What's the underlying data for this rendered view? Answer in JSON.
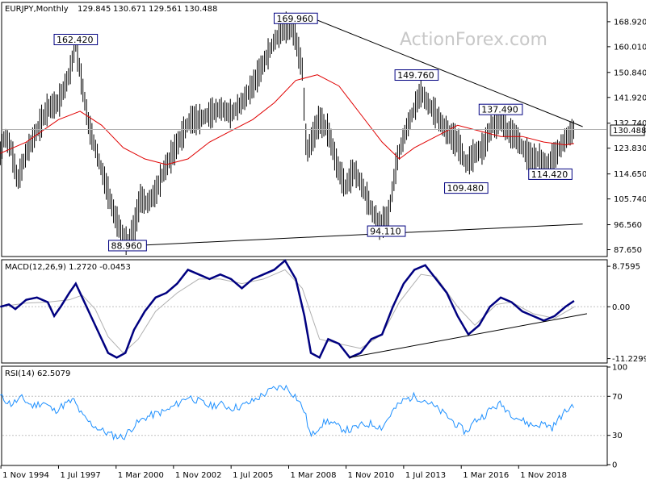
{
  "chart_data": [
    {
      "type": "candlestick",
      "title": "EURJPY,Monthly",
      "ohlc": {
        "open": "129.845",
        "high": "130.671",
        "low": "129.561",
        "close": "130.488"
      },
      "current_price": "130.488",
      "y_ticks": [
        "168.920",
        "160.010",
        "150.840",
        "141.920",
        "132.740",
        "123.830",
        "114.650",
        "105.740",
        "96.560",
        "87.650"
      ],
      "ylim": [
        85.5,
        175.5
      ],
      "annotations": [
        {
          "text": "169.960",
          "date": 2008.5,
          "value": 169.96
        },
        {
          "text": "162.420",
          "date": 1998.3,
          "value": 162.42
        },
        {
          "text": "149.760",
          "date": 2014.1,
          "value": 149.76
        },
        {
          "text": "137.490",
          "date": 2018.0,
          "value": 137.49
        },
        {
          "text": "114.420",
          "date": 2020.3,
          "value": 114.42
        },
        {
          "text": "109.480",
          "date": 2016.4,
          "value": 109.48
        },
        {
          "text": "94.110",
          "date": 2012.7,
          "value": 94.11
        },
        {
          "text": "88.960",
          "date": 2000.7,
          "value": 88.96
        }
      ],
      "price_series": [
        [
          1994.8,
          122
        ],
        [
          1995.0,
          128
        ],
        [
          1995.3,
          124
        ],
        [
          1995.6,
          112
        ],
        [
          1996.0,
          122
        ],
        [
          1996.5,
          130
        ],
        [
          1997.0,
          138
        ],
        [
          1997.5,
          140
        ],
        [
          1998.0,
          150
        ],
        [
          1998.3,
          161
        ],
        [
          1998.6,
          146
        ],
        [
          1998.9,
          132
        ],
        [
          1999.2,
          124
        ],
        [
          1999.5,
          116
        ],
        [
          1999.8,
          108
        ],
        [
          2000.1,
          100
        ],
        [
          2000.4,
          94
        ],
        [
          2000.7,
          90
        ],
        [
          2001.0,
          95
        ],
        [
          2001.3,
          106
        ],
        [
          2001.6,
          104
        ],
        [
          2002.0,
          108
        ],
        [
          2002.4,
          116
        ],
        [
          2002.8,
          122
        ],
        [
          2003.2,
          128
        ],
        [
          2003.6,
          134
        ],
        [
          2004.0,
          134
        ],
        [
          2004.5,
          136
        ],
        [
          2005.0,
          138
        ],
        [
          2005.5,
          136
        ],
        [
          2006.0,
          140
        ],
        [
          2006.5,
          146
        ],
        [
          2007.0,
          154
        ],
        [
          2007.5,
          162
        ],
        [
          2008.0,
          167
        ],
        [
          2008.4,
          166
        ],
        [
          2008.8,
          152
        ],
        [
          2009.0,
          122
        ],
        [
          2009.3,
          128
        ],
        [
          2009.6,
          134
        ],
        [
          2010.0,
          130
        ],
        [
          2010.4,
          118
        ],
        [
          2010.8,
          110
        ],
        [
          2011.2,
          116
        ],
        [
          2011.6,
          110
        ],
        [
          2012.0,
          102
        ],
        [
          2012.4,
          96
        ],
        [
          2012.8,
          100
        ],
        [
          2013.2,
          120
        ],
        [
          2013.6,
          130
        ],
        [
          2014.0,
          138
        ],
        [
          2014.3,
          144
        ],
        [
          2014.6,
          140
        ],
        [
          2015.0,
          136
        ],
        [
          2015.3,
          132
        ],
        [
          2015.7,
          128
        ],
        [
          2016.0,
          126
        ],
        [
          2016.4,
          118
        ],
        [
          2016.8,
          122
        ],
        [
          2017.2,
          124
        ],
        [
          2017.6,
          132
        ],
        [
          2018.0,
          134
        ],
        [
          2018.3,
          130
        ],
        [
          2018.7,
          128
        ],
        [
          2019.0,
          124
        ],
        [
          2019.4,
          120
        ],
        [
          2019.8,
          120
        ],
        [
          2020.2,
          118
        ],
        [
          2020.6,
          122
        ],
        [
          2020.9,
          126
        ],
        [
          2021.2,
          129
        ],
        [
          2021.4,
          130.5
        ]
      ],
      "ma_series": [
        [
          1994.8,
          122
        ],
        [
          1996.0,
          126
        ],
        [
          1997.5,
          134
        ],
        [
          1998.5,
          137
        ],
        [
          1999.5,
          132
        ],
        [
          2000.5,
          124
        ],
        [
          2001.5,
          120
        ],
        [
          2002.5,
          118
        ],
        [
          2003.5,
          120
        ],
        [
          2004.5,
          126
        ],
        [
          2005.5,
          130
        ],
        [
          2006.5,
          134
        ],
        [
          2007.5,
          140
        ],
        [
          2008.5,
          148
        ],
        [
          2009.5,
          150
        ],
        [
          2010.5,
          146
        ],
        [
          2011.5,
          136
        ],
        [
          2012.5,
          126
        ],
        [
          2013.3,
          120
        ],
        [
          2014.0,
          124
        ],
        [
          2015.0,
          128
        ],
        [
          2016.0,
          132
        ],
        [
          2017.0,
          130
        ],
        [
          2018.0,
          128
        ],
        [
          2019.0,
          128
        ],
        [
          2020.0,
          126
        ],
        [
          2021.0,
          125
        ],
        [
          2021.4,
          125.5
        ]
      ],
      "lines": [
        {
          "name": "falling-trendline",
          "from": [
            2009.0,
            171.0
          ],
          "to": [
            2021.8,
            131.5
          ]
        },
        {
          "name": "rising-trendline",
          "from": [
            2000.7,
            89.0
          ],
          "to": [
            2021.8,
            96.8
          ]
        }
      ]
    },
    {
      "type": "line",
      "title": "MACD(12,26,9) 1.2720 -0.0453",
      "y_ticks": [
        "8.7595",
        "0.00",
        "-11.2299"
      ],
      "ylim": [
        -12,
        10
      ],
      "macd_series": [
        [
          1994.8,
          0
        ],
        [
          1995.2,
          0.5
        ],
        [
          1995.5,
          -0.5
        ],
        [
          1996.0,
          1.5
        ],
        [
          1996.5,
          2.0
        ],
        [
          1997.0,
          1.0
        ],
        [
          1997.3,
          -2.0
        ],
        [
          1997.6,
          0.0
        ],
        [
          1998.0,
          3.0
        ],
        [
          1998.3,
          5.0
        ],
        [
          1998.6,
          2.0
        ],
        [
          1999.0,
          -2.0
        ],
        [
          1999.4,
          -6.0
        ],
        [
          1999.8,
          -10.0
        ],
        [
          2000.2,
          -11.0
        ],
        [
          2000.6,
          -10.0
        ],
        [
          2001.0,
          -5.0
        ],
        [
          2001.5,
          -1.0
        ],
        [
          2002.0,
          2.0
        ],
        [
          2002.5,
          3.0
        ],
        [
          2003.0,
          5.0
        ],
        [
          2003.5,
          8.0
        ],
        [
          2004.0,
          7.0
        ],
        [
          2004.5,
          6.0
        ],
        [
          2005.0,
          7.0
        ],
        [
          2005.5,
          6.0
        ],
        [
          2006.0,
          4.0
        ],
        [
          2006.5,
          6.0
        ],
        [
          2007.0,
          7.0
        ],
        [
          2007.5,
          8.0
        ],
        [
          2008.0,
          10.0
        ],
        [
          2008.5,
          6.0
        ],
        [
          2008.9,
          -2.0
        ],
        [
          2009.2,
          -10.0
        ],
        [
          2009.6,
          -11.0
        ],
        [
          2010.0,
          -7.0
        ],
        [
          2010.5,
          -8.0
        ],
        [
          2011.0,
          -11.0
        ],
        [
          2011.5,
          -10.0
        ],
        [
          2012.0,
          -7.0
        ],
        [
          2012.5,
          -6.0
        ],
        [
          2013.0,
          0.0
        ],
        [
          2013.5,
          5.0
        ],
        [
          2014.0,
          8.0
        ],
        [
          2014.5,
          9.0
        ],
        [
          2015.0,
          6.0
        ],
        [
          2015.5,
          3.0
        ],
        [
          2016.0,
          -2.0
        ],
        [
          2016.5,
          -6.0
        ],
        [
          2017.0,
          -4.0
        ],
        [
          2017.5,
          0.0
        ],
        [
          2018.0,
          2.0
        ],
        [
          2018.5,
          1.0
        ],
        [
          2019.0,
          -1.0
        ],
        [
          2019.5,
          -2.0
        ],
        [
          2020.0,
          -3.0
        ],
        [
          2020.5,
          -2.0
        ],
        [
          2021.0,
          0.0
        ],
        [
          2021.4,
          1.27
        ]
      ],
      "signal_series": [
        [
          1994.8,
          0
        ],
        [
          1996.0,
          0.8
        ],
        [
          1997.0,
          1.0
        ],
        [
          1998.0,
          1.5
        ],
        [
          1998.6,
          2.5
        ],
        [
          1999.2,
          -0.5
        ],
        [
          1999.8,
          -6.5
        ],
        [
          2000.5,
          -10.0
        ],
        [
          2001.2,
          -7.0
        ],
        [
          2002.0,
          -1.0
        ],
        [
          2003.0,
          3.0
        ],
        [
          2004.0,
          6.0
        ],
        [
          2005.0,
          6.0
        ],
        [
          2006.0,
          5.0
        ],
        [
          2007.0,
          6.0
        ],
        [
          2008.0,
          8.0
        ],
        [
          2008.8,
          4.0
        ],
        [
          2009.6,
          -7.0
        ],
        [
          2010.5,
          -8.0
        ],
        [
          2011.5,
          -9.0
        ],
        [
          2012.5,
          -6.0
        ],
        [
          2013.3,
          1.0
        ],
        [
          2014.3,
          7.0
        ],
        [
          2015.0,
          6.5
        ],
        [
          2016.0,
          0.0
        ],
        [
          2016.8,
          -4.0
        ],
        [
          2017.8,
          0.5
        ],
        [
          2018.5,
          1.0
        ],
        [
          2019.5,
          -1.5
        ],
        [
          2020.5,
          -2.5
        ],
        [
          2021.4,
          -0.05
        ]
      ],
      "lines": [
        {
          "name": "macd-trendline",
          "from": [
            2011.0,
            -11.0
          ],
          "to": [
            2022.0,
            -1.5
          ]
        }
      ]
    },
    {
      "type": "line",
      "title": "RSI(14) 62.5079",
      "y_ticks": [
        "100",
        "70",
        "30",
        "0"
      ],
      "ylim": [
        0,
        100
      ],
      "rsi_series": [
        [
          1994.8,
          70
        ],
        [
          1995.3,
          62
        ],
        [
          1995.8,
          68
        ],
        [
          1996.3,
          60
        ],
        [
          1996.8,
          64
        ],
        [
          1997.3,
          55
        ],
        [
          1997.8,
          62
        ],
        [
          1998.2,
          66
        ],
        [
          1998.6,
          50
        ],
        [
          1999.0,
          42
        ],
        [
          1999.5,
          35
        ],
        [
          2000.0,
          30
        ],
        [
          2000.5,
          28
        ],
        [
          2001.0,
          40
        ],
        [
          2001.5,
          48
        ],
        [
          2002.0,
          52
        ],
        [
          2002.5,
          55
        ],
        [
          2003.0,
          62
        ],
        [
          2003.5,
          70
        ],
        [
          2004.0,
          65
        ],
        [
          2004.5,
          60
        ],
        [
          2005.0,
          62
        ],
        [
          2005.5,
          58
        ],
        [
          2006.0,
          60
        ],
        [
          2006.5,
          65
        ],
        [
          2007.0,
          72
        ],
        [
          2007.5,
          78
        ],
        [
          2008.0,
          80
        ],
        [
          2008.5,
          70
        ],
        [
          2008.9,
          55
        ],
        [
          2009.2,
          28
        ],
        [
          2009.6,
          40
        ],
        [
          2010.0,
          45
        ],
        [
          2010.5,
          38
        ],
        [
          2011.0,
          35
        ],
        [
          2011.5,
          40
        ],
        [
          2012.0,
          42
        ],
        [
          2012.5,
          38
        ],
        [
          2013.0,
          55
        ],
        [
          2013.5,
          66
        ],
        [
          2014.0,
          70
        ],
        [
          2014.5,
          66
        ],
        [
          2015.0,
          58
        ],
        [
          2015.5,
          50
        ],
        [
          2016.0,
          40
        ],
        [
          2016.4,
          33
        ],
        [
          2016.8,
          45
        ],
        [
          2017.2,
          50
        ],
        [
          2017.6,
          58
        ],
        [
          2018.0,
          62
        ],
        [
          2018.5,
          52
        ],
        [
          2019.0,
          45
        ],
        [
          2019.5,
          40
        ],
        [
          2020.0,
          42
        ],
        [
          2020.4,
          38
        ],
        [
          2020.8,
          50
        ],
        [
          2021.1,
          56
        ],
        [
          2021.4,
          62.5
        ]
      ]
    }
  ],
  "x_axis": {
    "labels": [
      "1 Nov 1994",
      "1 Jul 1997",
      "1 Mar 2000",
      "1 Nov 2002",
      "1 Jul 2005",
      "1 Mar 2008",
      "1 Nov 2010",
      "1 Jul 2013",
      "1 Mar 2016",
      "1 Nov 2018"
    ],
    "dates": [
      1994.83,
      1997.5,
      2000.17,
      2002.83,
      2005.5,
      2008.17,
      2010.83,
      2013.5,
      2016.17,
      2018.83
    ]
  },
  "watermark": "ActionForex.com"
}
